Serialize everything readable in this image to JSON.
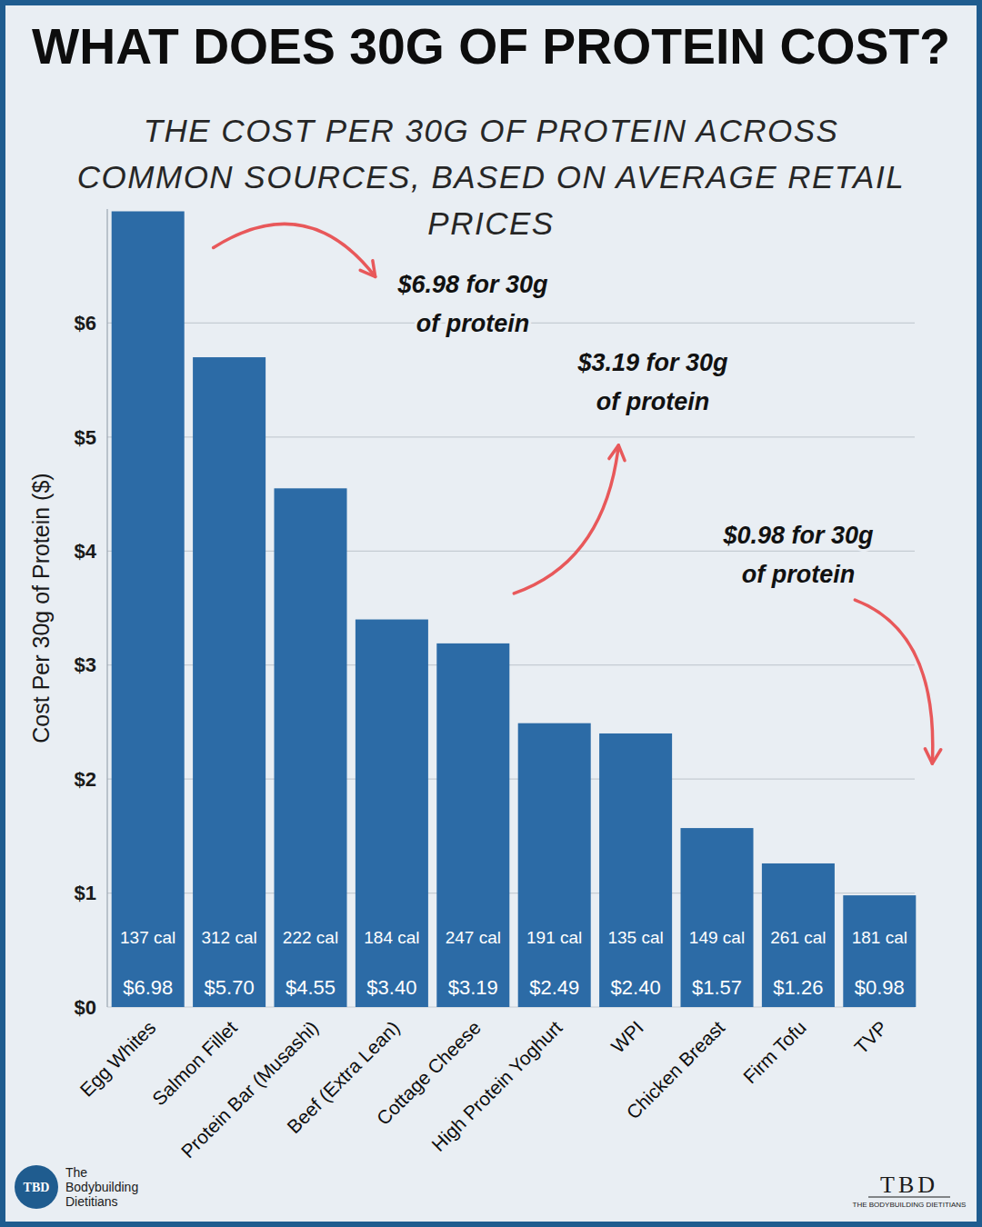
{
  "chart_data": {
    "type": "bar",
    "title": "WHAT DOES 30G OF PROTEIN COST?",
    "subtitle": "THE COST PER 30G OF PROTEIN ACROSS COMMON SOURCES, BASED ON AVERAGE RETAIL PRICES",
    "y_label": "Cost Per 30g of Protein ($)",
    "categories": [
      "Egg Whites",
      "Salmon Fillet",
      "Protein Bar (Musashi)",
      "Beef (Extra Lean)",
      "Cottage Cheese",
      "High Protein Yoghurt",
      "WPI",
      "Chicken Breast",
      "Firm Tofu",
      "TVP"
    ],
    "values": [
      6.98,
      5.7,
      4.55,
      3.4,
      3.19,
      2.49,
      2.4,
      1.57,
      1.26,
      0.98
    ],
    "value_labels": [
      "$6.98",
      "$5.70",
      "$4.55",
      "$3.40",
      "$3.19",
      "$2.49",
      "$2.40",
      "$1.57",
      "$1.26",
      "$0.98"
    ],
    "calorie_labels": [
      "137 cal",
      "312 cal",
      "222 cal",
      "184 cal",
      "247 cal",
      "191 cal",
      "135 cal",
      "149 cal",
      "261 cal",
      "181 cal"
    ],
    "color": "#2c6ba6",
    "ylim": [
      0,
      7
    ],
    "yticks": [
      {
        "value": 0,
        "label": "$0"
      },
      {
        "value": 1,
        "label": "$1"
      },
      {
        "value": 2,
        "label": "$2"
      },
      {
        "value": 3,
        "label": "$3"
      },
      {
        "value": 4,
        "label": "$4"
      },
      {
        "value": 5,
        "label": "$5"
      },
      {
        "value": 6,
        "label": "$6"
      }
    ],
    "grid": true,
    "data_labels": true,
    "annotations": [
      {
        "text": [
          "$6.98 for 30g",
          "of protein"
        ],
        "category": "Egg Whites"
      },
      {
        "text": [
          "$3.19 for 30g",
          "of protein"
        ],
        "category": "Cottage Cheese"
      },
      {
        "text": [
          "$0.98 for 30g",
          "of protein"
        ],
        "category": "TVP"
      }
    ]
  },
  "branding": {
    "logo": "TBD",
    "name": [
      "The",
      "Bodybuilding",
      "Dietitians"
    ],
    "tagline": "THE BODYBUILDING DIETITIANS"
  }
}
